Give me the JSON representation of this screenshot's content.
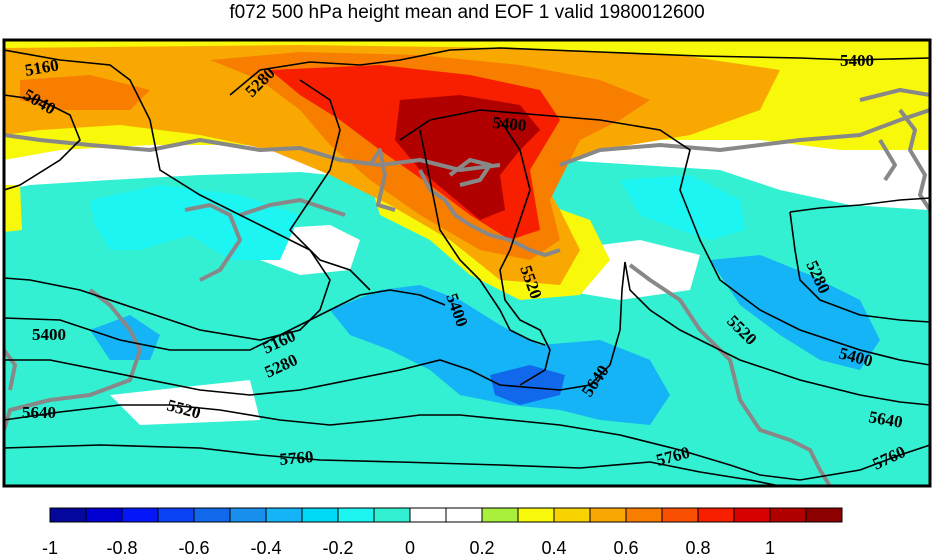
{
  "title": "f072 500 hPa height mean and EOF 1 valid 1980012600",
  "colorbar": {
    "colors": [
      "#04079c",
      "#0000d2",
      "#0517f6",
      "#0b42f6",
      "#1268ea",
      "#1990ee",
      "#14b4f6",
      "#00d9f6",
      "#1cf5f2",
      "#34f0d2",
      "#ffffff",
      "#ffffff",
      "#a8f03c",
      "#f8f80a",
      "#f8d300",
      "#f8a800",
      "#f87e00",
      "#f85000",
      "#f81e00",
      "#d80000",
      "#b00000",
      "#8c0000"
    ],
    "ticks": [
      "-1",
      "-0.8",
      "-0.6",
      "-0.4",
      "-0.2",
      "0",
      "0.2",
      "0.4",
      "0.6",
      "0.8",
      "1"
    ],
    "range": [
      -1,
      1
    ]
  },
  "contours": {
    "labels": [
      "5040",
      "5160",
      "5280",
      "5400",
      "5520",
      "5280",
      "5400",
      "5520",
      "5160",
      "5280",
      "5400",
      "5520",
      "5400",
      "5640",
      "5640",
      "5760",
      "5760",
      "5640",
      "5760",
      "5400",
      "5280",
      "5520"
    ]
  }
}
